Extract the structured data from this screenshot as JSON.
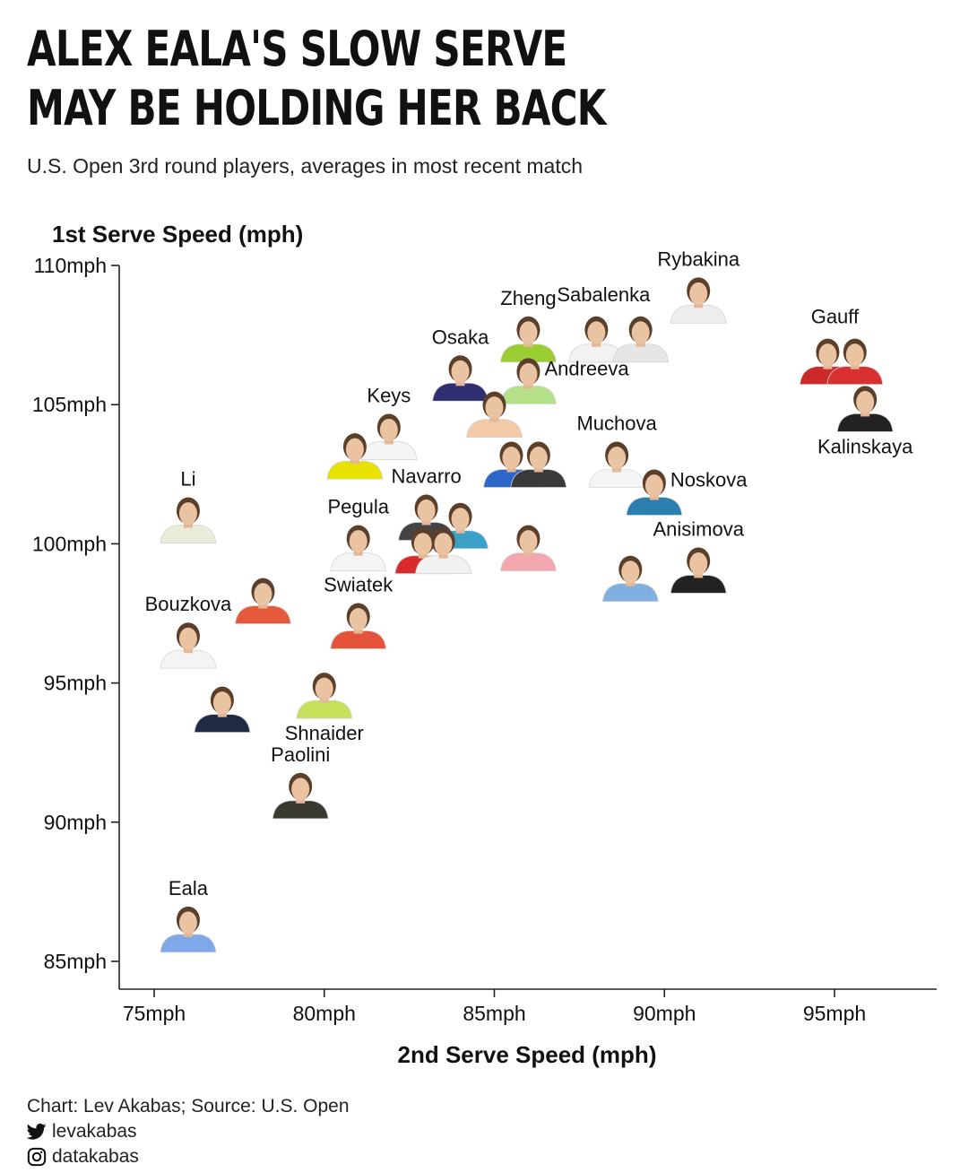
{
  "title_lines": [
    "ALEX EALA'S SLOW SERVE",
    "MAY BE HOLDING HER BACK"
  ],
  "subtitle": "U.S. Open 3rd round players, averages in most recent match",
  "chart_data": {
    "type": "scatter",
    "ylabel": "1st Serve Speed (mph)",
    "xlabel": "2nd Serve Speed (mph)",
    "xlim": [
      74,
      98
    ],
    "ylim": [
      84,
      110
    ],
    "xticks": [
      75,
      80,
      85,
      90,
      95
    ],
    "yticks": [
      85,
      90,
      95,
      100,
      105,
      110
    ],
    "xtick_labels": [
      "75mph",
      "80mph",
      "85mph",
      "90mph",
      "95mph"
    ],
    "ytick_labels": [
      "85mph",
      "90mph",
      "95mph",
      "100mph",
      "105mph",
      "110mph"
    ],
    "grid": false,
    "points": [
      {
        "name": "Rybakina",
        "x": 91.0,
        "y": 108.7,
        "label_pos": "above",
        "shirt": "#eeeeee"
      },
      {
        "name": "Zheng",
        "x": 86.0,
        "y": 107.3,
        "label_pos": "above",
        "shirt": "#9acd32"
      },
      {
        "name": "Sabalenka",
        "x": 88.0,
        "y": 107.3,
        "label_pos": "above-right",
        "shirt": "#f2f2f2"
      },
      {
        "name": "",
        "x": 89.3,
        "y": 107.3,
        "label_pos": "none",
        "shirt": "#e6e6e6"
      },
      {
        "name": "Gauff",
        "x": 94.8,
        "y": 106.5,
        "label_pos": "above-right",
        "shirt": "#cc2a2a"
      },
      {
        "name": "",
        "x": 95.6,
        "y": 106.5,
        "label_pos": "none",
        "shirt": "#d83030"
      },
      {
        "name": "Osaka",
        "x": 84.0,
        "y": 105.9,
        "label_pos": "above",
        "shirt": "#2f2f6f"
      },
      {
        "name": "Andreeva",
        "x": 86.0,
        "y": 105.8,
        "label_pos": "right",
        "shirt": "#b5e08a"
      },
      {
        "name": "",
        "x": 85.0,
        "y": 104.6,
        "label_pos": "none",
        "shirt": "#f3c9a8"
      },
      {
        "name": "Kalinskaya",
        "x": 95.9,
        "y": 104.8,
        "label_pos": "below",
        "shirt": "#222222"
      },
      {
        "name": "Keys",
        "x": 81.9,
        "y": 103.8,
        "label_pos": "above",
        "shirt": "#f5f5f5"
      },
      {
        "name": "",
        "x": 80.9,
        "y": 103.1,
        "label_pos": "none",
        "shirt": "#e8e200"
      },
      {
        "name": "Muchova",
        "x": 88.6,
        "y": 102.8,
        "label_pos": "above",
        "shirt": "#f5f5f5"
      },
      {
        "name": "",
        "x": 85.5,
        "y": 102.8,
        "label_pos": "none",
        "shirt": "#2b66c8"
      },
      {
        "name": "",
        "x": 86.3,
        "y": 102.8,
        "label_pos": "none",
        "shirt": "#3a3a3a"
      },
      {
        "name": "Noskova",
        "x": 89.7,
        "y": 101.8,
        "label_pos": "right",
        "shirt": "#2a7fb0"
      },
      {
        "name": "Li",
        "x": 76.0,
        "y": 100.8,
        "label_pos": "above",
        "shirt": "#e9ecd8"
      },
      {
        "name": "Navarro",
        "x": 83.0,
        "y": 100.9,
        "label_pos": "above",
        "shirt": "#444444"
      },
      {
        "name": "",
        "x": 84.0,
        "y": 100.6,
        "label_pos": "none",
        "shirt": "#3aa0c8"
      },
      {
        "name": "Pegula",
        "x": 81.0,
        "y": 99.8,
        "label_pos": "above",
        "shirt": "#f4f4f4"
      },
      {
        "name": "",
        "x": 82.9,
        "y": 99.7,
        "label_pos": "none",
        "shirt": "#d92b2b"
      },
      {
        "name": "",
        "x": 83.5,
        "y": 99.7,
        "label_pos": "none",
        "shirt": "#f1f1f1"
      },
      {
        "name": "",
        "x": 86.0,
        "y": 99.8,
        "label_pos": "none",
        "shirt": "#f3a8b0"
      },
      {
        "name": "Anisimova",
        "x": 91.0,
        "y": 99.0,
        "label_pos": "above",
        "shirt": "#222222"
      },
      {
        "name": "",
        "x": 89.0,
        "y": 98.7,
        "label_pos": "none",
        "shirt": "#7fb0e0"
      },
      {
        "name": "",
        "x": 78.2,
        "y": 97.9,
        "label_pos": "none",
        "shirt": "#e65a3c"
      },
      {
        "name": "Bouzkova",
        "x": 76.0,
        "y": 96.3,
        "label_pos": "above",
        "shirt": "#f4f4f4"
      },
      {
        "name": "Swiatek",
        "x": 81.0,
        "y": 97.0,
        "label_pos": "above",
        "shirt": "#e5543a"
      },
      {
        "name": "Shnaider",
        "x": 80.0,
        "y": 94.5,
        "label_pos": "below",
        "shirt": "#c7e05a"
      },
      {
        "name": "",
        "x": 77.0,
        "y": 94.0,
        "label_pos": "none",
        "shirt": "#1f2a44"
      },
      {
        "name": "Paolini",
        "x": 79.3,
        "y": 90.9,
        "label_pos": "above",
        "shirt": "#3a3a30"
      },
      {
        "name": "Eala",
        "x": 76.0,
        "y": 86.1,
        "label_pos": "above",
        "shirt": "#7fa8e8"
      }
    ]
  },
  "footer": {
    "credit": "Chart: Lev Akabas; Source: U.S. Open",
    "twitter_icon": "twitter-bird-icon",
    "twitter": "levakabas",
    "instagram_icon": "instagram-icon",
    "instagram": "datakabas"
  }
}
